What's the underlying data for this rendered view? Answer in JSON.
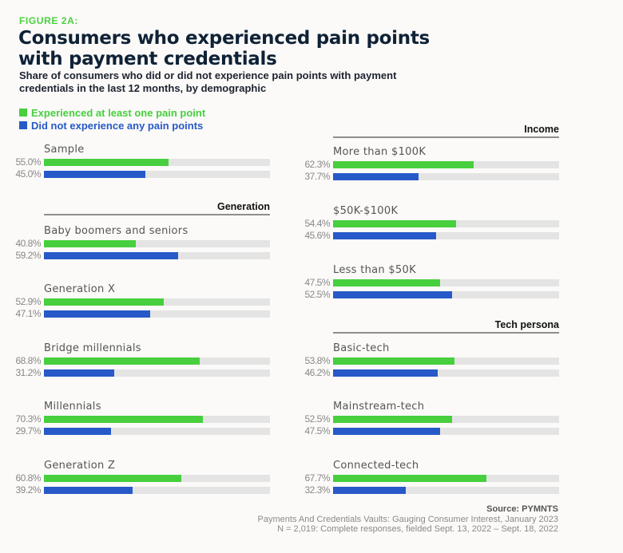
{
  "figure_label": "FIGURE 2A:",
  "title": "Consumers who experienced pain points with payment credentials",
  "subtitle": "Share of consumers who did or did not experience pain points with payment credentials in the last 12 months, by demographic",
  "colors": {
    "experienced": "#47cf3e",
    "not_experienced": "#2759c8",
    "track": "#e4e4e4"
  },
  "source": {
    "head": "Source: PYMNTS",
    "line1": "Payments And Credentials Vaults: Gauging Consumer Interest, January 2023",
    "line2": "N = 2,019: Complete responses, fielded Sept. 13, 2022 – Sept. 18, 2022"
  },
  "chart_data": {
    "type": "bar",
    "orientation": "horizontal",
    "title": "Consumers who experienced pain points with payment credentials",
    "subtitle": "Share of consumers who did or did not experience pain points with payment credentials in the last 12 months, by demographic",
    "xlim": [
      0,
      100
    ],
    "unit": "%",
    "legend": {
      "placement": "top-left",
      "entries": [
        "Experienced at least one pain point",
        "Did not experience any pain points"
      ]
    },
    "series_names": [
      "Experienced at least one pain point",
      "Did not experience any pain points"
    ],
    "sections": [
      {
        "name": "",
        "column": "left",
        "groups": [
          {
            "label": "Sample",
            "values": [
              55.0,
              45.0
            ],
            "labels": [
              "55.0%",
              "45.0%"
            ]
          }
        ]
      },
      {
        "name": "Generation",
        "column": "left",
        "groups": [
          {
            "label": "Baby boomers and seniors",
            "values": [
              40.8,
              59.2
            ],
            "labels": [
              "40.8%",
              "59.2%"
            ]
          },
          {
            "label": "Generation X",
            "values": [
              52.9,
              47.1
            ],
            "labels": [
              "52.9%",
              "47.1%"
            ]
          },
          {
            "label": "Bridge millennials",
            "values": [
              68.8,
              31.2
            ],
            "labels": [
              "68.8%",
              "31.2%"
            ]
          },
          {
            "label": "Millennials",
            "values": [
              70.3,
              29.7
            ],
            "labels": [
              "70.3%",
              "29.7%"
            ]
          },
          {
            "label": "Generation Z",
            "values": [
              60.8,
              39.2
            ],
            "labels": [
              "60.8%",
              "39.2%"
            ]
          }
        ]
      },
      {
        "name": "Income",
        "column": "right",
        "groups": [
          {
            "label": "More than $100K",
            "values": [
              62.3,
              37.7
            ],
            "labels": [
              "62.3%",
              "37.7%"
            ]
          },
          {
            "label": "$50K-$100K",
            "values": [
              54.4,
              45.6
            ],
            "labels": [
              "54.4%",
              "45.6%"
            ]
          },
          {
            "label": "Less than $50K",
            "values": [
              47.5,
              52.5
            ],
            "labels": [
              "47.5%",
              "52.5%"
            ]
          }
        ]
      },
      {
        "name": "Tech persona",
        "column": "right",
        "groups": [
          {
            "label": "Basic-tech",
            "values": [
              53.8,
              46.2
            ],
            "labels": [
              "53.8%",
              "46.2%"
            ]
          },
          {
            "label": "Mainstream-tech",
            "values": [
              52.5,
              47.5
            ],
            "labels": [
              "52.5%",
              "47.5%"
            ]
          },
          {
            "label": "Connected-tech",
            "values": [
              67.7,
              32.3
            ],
            "labels": [
              "67.7%",
              "32.3%"
            ]
          }
        ]
      }
    ]
  }
}
